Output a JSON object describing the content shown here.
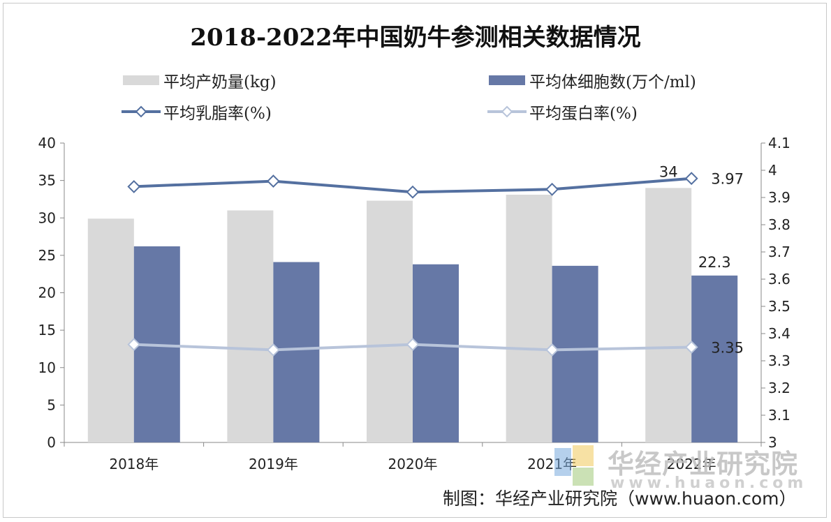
{
  "chart_data": {
    "type": "bar",
    "title": "2018-2022年中国奶牛参测相关数据情况",
    "categories": [
      "2018年",
      "2019年",
      "2020年",
      "2021年",
      "2022年"
    ],
    "series": [
      {
        "name": "平均产奶量(kg)",
        "kind": "bar",
        "axis": "left",
        "color": "#d9d9d9",
        "values": [
          29.9,
          31.0,
          32.3,
          33.1,
          34
        ]
      },
      {
        "name": "平均体细胞数(万个/ml)",
        "kind": "bar",
        "axis": "left",
        "color": "#6678a6",
        "values": [
          26.2,
          24.1,
          23.8,
          23.6,
          22.3
        ]
      },
      {
        "name": "平均乳脂率(%)",
        "kind": "line",
        "axis": "right",
        "color": "#5470a0",
        "values": [
          3.94,
          3.96,
          3.92,
          3.93,
          3.97
        ]
      },
      {
        "name": "平均蛋白率(%)",
        "kind": "line",
        "axis": "right",
        "color": "#b8c4da",
        "values": [
          3.36,
          3.34,
          3.36,
          3.34,
          3.35
        ]
      }
    ],
    "y_left": {
      "min": 0,
      "max": 40,
      "ticks": [
        "0",
        "5",
        "10",
        "15",
        "20",
        "25",
        "30",
        "35",
        "40"
      ]
    },
    "y_right": {
      "min": 3,
      "max": 4.1,
      "ticks": [
        "3",
        "3.1",
        "3.2",
        "3.3",
        "3.4",
        "3.5",
        "3.6",
        "3.7",
        "3.8",
        "3.9",
        "4",
        "4.1"
      ]
    },
    "data_labels": [
      {
        "series": 0,
        "index": 4,
        "text": "34"
      },
      {
        "series": 1,
        "index": 4,
        "text": "22.3"
      },
      {
        "series": 2,
        "index": 4,
        "text": "3.97"
      },
      {
        "series": 3,
        "index": 4,
        "text": "3.35"
      }
    ],
    "grid": false,
    "legend_position": "top"
  },
  "watermark": {
    "name": "华经产业研究院",
    "url": "www.huaon.com"
  },
  "source": "制图：华经产业研究院（www.huaon.com）"
}
